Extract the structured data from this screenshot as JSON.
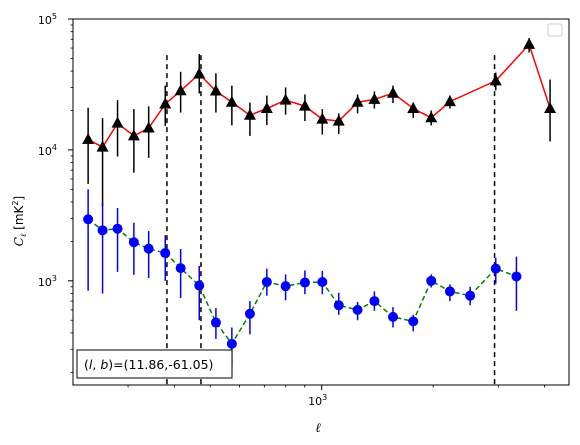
{
  "chart_data": {
    "type": "scatter",
    "xscale": "log",
    "yscale": "log",
    "xlim": [
      213,
      4655
    ],
    "ylim": [
      160,
      100000
    ],
    "xlabel": "ℓ",
    "ylabel": "C_ℓ [mK²]",
    "x_tick_labels": [
      {
        "value": 1000,
        "base": "10",
        "exp": "3"
      }
    ],
    "y_tick_labels": [
      {
        "value": 1000,
        "base": "10",
        "exp": "3"
      },
      {
        "value": 10000,
        "base": "10",
        "exp": "4"
      },
      {
        "value": 100000,
        "base": "10",
        "exp": "5"
      }
    ],
    "vlines": [
      382,
      472,
      2930
    ],
    "annotation": "(l, b)=(11.86,-61.05)",
    "legend_placement": "top-right",
    "grid": false,
    "series": [
      {
        "marker": "triangle",
        "color": "#000000",
        "line_color": "#ff0000",
        "line_style": "solid",
        "points": [
          {
            "x": 234,
            "y": 12000,
            "lo": 5500,
            "hi": 21000
          },
          {
            "x": 256,
            "y": 10500,
            "lo": 3700,
            "hi": 17500
          },
          {
            "x": 281,
            "y": 16000,
            "lo": 8900,
            "hi": 24000
          },
          {
            "x": 311,
            "y": 12800,
            "lo": 6700,
            "hi": 20500
          },
          {
            "x": 341,
            "y": 14700,
            "lo": 8700,
            "hi": 21500
          },
          {
            "x": 378,
            "y": 22400,
            "lo": 15200,
            "hi": 31000
          },
          {
            "x": 416,
            "y": 28300,
            "lo": 19300,
            "hi": 39500
          },
          {
            "x": 467,
            "y": 38000,
            "lo": 27000,
            "hi": 54000
          },
          {
            "x": 518,
            "y": 28200,
            "lo": 19300,
            "hi": 38500
          },
          {
            "x": 572,
            "y": 23100,
            "lo": 15400,
            "hi": 31000
          },
          {
            "x": 640,
            "y": 18400,
            "lo": 12800,
            "hi": 23000
          },
          {
            "x": 711,
            "y": 20700,
            "lo": 15500,
            "hi": 26000
          },
          {
            "x": 799,
            "y": 24000,
            "lo": 18600,
            "hi": 30000
          },
          {
            "x": 901,
            "y": 21600,
            "lo": 16600,
            "hi": 26500
          },
          {
            "x": 1004,
            "y": 17200,
            "lo": 13100,
            "hi": 20500
          },
          {
            "x": 1112,
            "y": 16600,
            "lo": 13200,
            "hi": 19000
          },
          {
            "x": 1250,
            "y": 23100,
            "lo": 19000,
            "hi": 26500
          },
          {
            "x": 1388,
            "y": 24300,
            "lo": 20700,
            "hi": 28000
          },
          {
            "x": 1558,
            "y": 27100,
            "lo": 22800,
            "hi": 31000
          },
          {
            "x": 1767,
            "y": 20700,
            "lo": 17500,
            "hi": 23000
          },
          {
            "x": 1976,
            "y": 17600,
            "lo": 15400,
            "hi": 20000
          },
          {
            "x": 2220,
            "y": 23400,
            "lo": 20700,
            "hi": 26000
          },
          {
            "x": 2952,
            "y": 33700,
            "lo": 28500,
            "hi": 39000
          },
          {
            "x": 3633,
            "y": 64000,
            "lo": 55500,
            "hi": 71500
          },
          {
            "x": 4138,
            "y": 20700,
            "lo": 11600,
            "hi": 34500
          }
        ]
      },
      {
        "marker": "circle",
        "color": "#0000ff",
        "line_color": "#008000",
        "line_style": "dashed",
        "points": [
          {
            "x": 234,
            "y": 2950,
            "lo": 840,
            "hi": 5000
          },
          {
            "x": 256,
            "y": 2430,
            "lo": 800,
            "hi": 3950
          },
          {
            "x": 281,
            "y": 2500,
            "lo": 1170,
            "hi": 3600
          },
          {
            "x": 311,
            "y": 1970,
            "lo": 1110,
            "hi": 2780
          },
          {
            "x": 341,
            "y": 1760,
            "lo": 1050,
            "hi": 2400
          },
          {
            "x": 378,
            "y": 1630,
            "lo": 1000,
            "hi": 2230
          },
          {
            "x": 416,
            "y": 1250,
            "lo": 740,
            "hi": 1750
          },
          {
            "x": 467,
            "y": 920,
            "lo": 500,
            "hi": 1300
          },
          {
            "x": 518,
            "y": 480,
            "lo": 360,
            "hi": 620
          },
          {
            "x": 572,
            "y": 330,
            "lo": 220,
            "hi": 440
          },
          {
            "x": 640,
            "y": 560,
            "lo": 390,
            "hi": 700
          },
          {
            "x": 711,
            "y": 980,
            "lo": 770,
            "hi": 1240
          },
          {
            "x": 799,
            "y": 910,
            "lo": 710,
            "hi": 1120
          },
          {
            "x": 901,
            "y": 970,
            "lo": 790,
            "hi": 1200
          },
          {
            "x": 1004,
            "y": 980,
            "lo": 790,
            "hi": 1190
          },
          {
            "x": 1112,
            "y": 650,
            "lo": 550,
            "hi": 810
          },
          {
            "x": 1250,
            "y": 600,
            "lo": 500,
            "hi": 690
          },
          {
            "x": 1388,
            "y": 700,
            "lo": 590,
            "hi": 830
          },
          {
            "x": 1558,
            "y": 530,
            "lo": 440,
            "hi": 630
          },
          {
            "x": 1767,
            "y": 490,
            "lo": 410,
            "hi": 550
          },
          {
            "x": 1976,
            "y": 1000,
            "lo": 890,
            "hi": 1120
          },
          {
            "x": 2220,
            "y": 830,
            "lo": 700,
            "hi": 940
          },
          {
            "x": 2517,
            "y": 770,
            "lo": 650,
            "hi": 900
          },
          {
            "x": 2952,
            "y": 1240,
            "lo": 950,
            "hi": 1500
          },
          {
            "x": 3357,
            "y": 1080,
            "lo": 590,
            "hi": 1530
          }
        ]
      }
    ]
  }
}
